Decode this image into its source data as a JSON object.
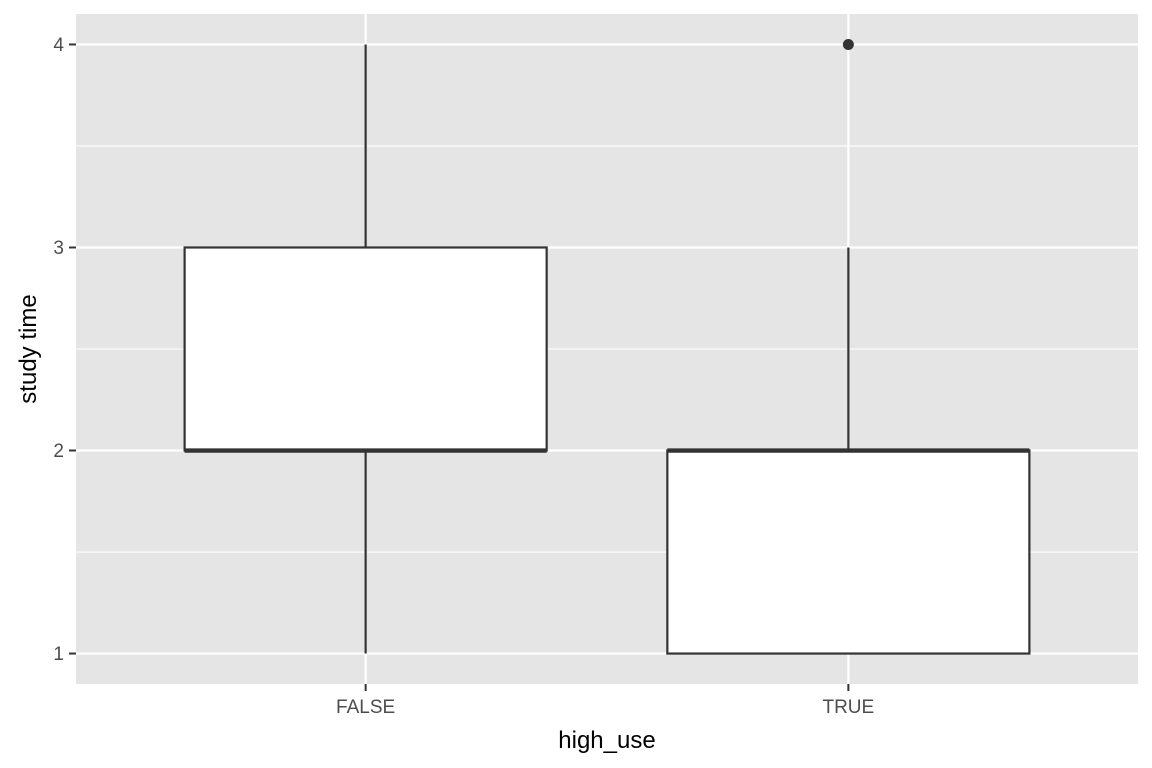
{
  "chart_data": {
    "type": "boxplot",
    "title": "",
    "xlabel": "high_use",
    "ylabel": "study time",
    "categories": [
      "FALSE",
      "TRUE"
    ],
    "boxes": [
      {
        "category": "FALSE",
        "min": 1,
        "q1": 2,
        "median": 2,
        "q3": 3,
        "max": 4,
        "outliers": []
      },
      {
        "category": "TRUE",
        "min": 1,
        "q1": 1,
        "median": 2,
        "q3": 2,
        "max": 3,
        "outliers": [
          4
        ]
      }
    ],
    "ylim": [
      0.85,
      4.15
    ],
    "y_ticks": [
      1,
      2,
      3,
      4
    ],
    "y_minor_ticks": [
      1.5,
      2.5,
      3.5
    ],
    "grid": true,
    "legend": "none",
    "colors": {
      "panel_background": "#e5e5e5",
      "grid": "#ffffff",
      "box_fill": "#ffffff",
      "box_stroke": "#333333",
      "tick_text": "#4d4d4d"
    }
  }
}
